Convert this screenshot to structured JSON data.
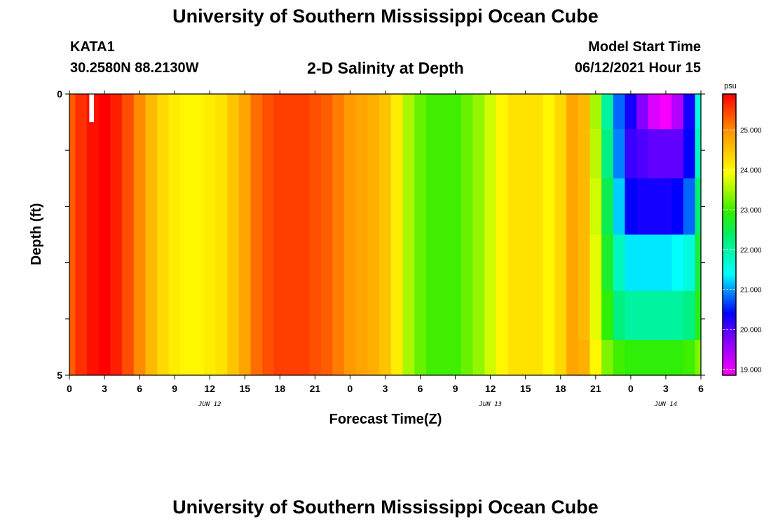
{
  "header": {
    "title": "University of Southern Mississippi Ocean Cube",
    "station": "KATA1",
    "coords": "30.2580N  88.2130W",
    "subtitle": "2-D Salinity at Depth",
    "model_start_label": "Model Start Time",
    "model_start_value": "06/12/2021 Hour 15"
  },
  "footer": {
    "title": "University of Southern Mississippi Ocean Cube"
  },
  "chart_data": {
    "type": "heatmap",
    "title": "2-D Salinity at Depth",
    "xlabel": "Forecast Time(Z)",
    "ylabel": "Depth (ft)",
    "x_range_hours": [
      0,
      54
    ],
    "y_range": [
      0,
      5
    ],
    "y_ticks": [
      "0",
      "5"
    ],
    "x_tick_labels": [
      "0",
      "3",
      "6",
      "9",
      "12",
      "15",
      "18",
      "21",
      "0",
      "3",
      "6",
      "9",
      "12",
      "15",
      "18",
      "21",
      "0",
      "3",
      "6"
    ],
    "date_labels": [
      {
        "text": "JUN 12",
        "hour": 12
      },
      {
        "text": "JUN 13",
        "hour": 36
      },
      {
        "text": "JUN 14",
        "hour": 51
      }
    ],
    "depth_levels": [
      0.25,
      1.0,
      2.0,
      3.0,
      4.0,
      4.75
    ],
    "colorbar": {
      "unit": "psu",
      "min": 18.85,
      "max": 25.9,
      "tick_labels": [
        "19.000",
        "20.000",
        "21.000",
        "22.000",
        "23.000",
        "24.000",
        "25.000"
      ]
    },
    "hours": [
      0,
      1,
      2,
      3,
      4,
      5,
      6,
      7,
      8,
      9,
      10,
      11,
      12,
      13,
      14,
      15,
      16,
      17,
      18,
      19,
      20,
      21,
      22,
      23,
      24,
      25,
      26,
      27,
      28,
      29,
      30,
      31,
      32,
      33,
      34,
      35,
      36,
      37,
      38,
      39,
      40,
      41,
      42,
      43,
      44,
      45,
      46,
      47,
      48,
      49,
      50,
      51,
      52,
      53,
      54
    ],
    "surface_salinity": [
      25.3,
      25.6,
      25.8,
      25.9,
      25.7,
      25.4,
      25.0,
      24.6,
      24.3,
      24.1,
      24.0,
      24.0,
      24.1,
      24.2,
      24.5,
      24.8,
      25.2,
      25.4,
      25.5,
      25.5,
      25.5,
      25.4,
      25.3,
      25.1,
      24.9,
      24.8,
      24.7,
      24.5,
      24.1,
      23.5,
      23.2,
      23.0,
      23.0,
      23.0,
      23.2,
      23.4,
      23.7,
      24.0,
      24.2,
      24.2,
      24.2,
      24.0,
      24.3,
      24.8,
      24.5,
      23.2,
      21.5,
      20.5,
      19.8,
      19.0,
      18.9,
      19.1,
      19.8,
      20.6,
      21.5
    ],
    "depth_profiles": [
      {
        "start_hour": 44,
        "end_hour": 54,
        "values": [
          [
            24.6,
            24.6,
            24.6,
            24.6,
            24.6,
            24.7
          ],
          [
            23.5,
            23.6,
            23.7,
            23.8,
            23.8,
            24.0
          ],
          [
            22.0,
            22.2,
            22.5,
            22.7,
            22.9,
            23.3
          ],
          [
            20.8,
            20.9,
            21.2,
            21.8,
            22.2,
            23.0
          ],
          [
            20.3,
            20.1,
            20.4,
            21.3,
            22.0,
            22.9
          ],
          [
            19.7,
            20.0,
            20.3,
            21.3,
            22.0,
            22.9
          ],
          [
            19.1,
            19.9,
            20.3,
            21.3,
            22.0,
            22.9
          ],
          [
            18.9,
            19.9,
            20.3,
            21.3,
            22.0,
            22.9
          ],
          [
            19.4,
            19.9,
            20.4,
            21.4,
            22.0,
            22.9
          ],
          [
            20.3,
            20.4,
            20.8,
            21.6,
            22.2,
            23.0
          ],
          [
            21.6,
            21.8,
            22.3,
            22.6,
            22.8,
            23.3
          ]
        ]
      }
    ],
    "missing_cells": [
      {
        "hour_start": 1.7,
        "hour_end": 2.1,
        "depth_start": 0,
        "depth_end": 0.5
      }
    ]
  }
}
